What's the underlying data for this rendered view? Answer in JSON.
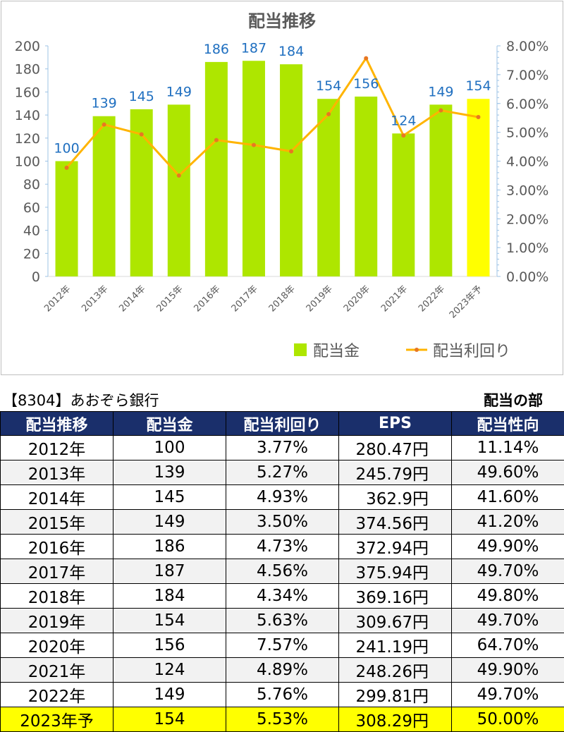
{
  "chart_data": {
    "type": "bar+line",
    "title": "配当推移",
    "categories": [
      "2012年",
      "2013年",
      "2014年",
      "2015年",
      "2016年",
      "2017年",
      "2018年",
      "2019年",
      "2020年",
      "2021年",
      "2022年",
      "2023年予"
    ],
    "series": [
      {
        "name": "配当金",
        "type": "bar",
        "axis": "left",
        "values": [
          100,
          139,
          145,
          149,
          186,
          187,
          184,
          154,
          156,
          124,
          149,
          154
        ],
        "color": "#aee600",
        "highlight_last_color": "#ffff00"
      },
      {
        "name": "配当利回り",
        "type": "line",
        "axis": "right",
        "values": [
          3.77,
          5.27,
          4.93,
          3.5,
          4.73,
          4.56,
          4.34,
          5.63,
          7.57,
          4.89,
          5.76,
          5.53
        ],
        "color": "#ffb400",
        "marker_color": "#e87722"
      }
    ],
    "left_axis": {
      "min": 0,
      "max": 200,
      "step": 20,
      "ticks": [
        "0",
        "20",
        "40",
        "60",
        "80",
        "100",
        "120",
        "140",
        "160",
        "180",
        "200"
      ]
    },
    "right_axis": {
      "min": 0,
      "max": 8,
      "step": 1,
      "ticks": [
        "0.00%",
        "1.00%",
        "2.00%",
        "3.00%",
        "4.00%",
        "5.00%",
        "6.00%",
        "7.00%",
        "8.00%"
      ]
    },
    "data_labels": [
      "100",
      "139",
      "145",
      "149",
      "186",
      "187",
      "184",
      "154",
      "156",
      "124",
      "149",
      "154"
    ],
    "legend": {
      "placement": "bottom-right",
      "items": [
        "配当金",
        "配当利回り"
      ]
    },
    "grid": false
  },
  "company_title": "【8304】あおぞら銀行",
  "section_label": "配当の部",
  "table": {
    "headers": [
      "配当推移",
      "配当金",
      "配当利回り",
      "EPS",
      "配当性向"
    ],
    "rows": [
      [
        "2012年",
        "100",
        "3.77%",
        "280.47円",
        "11.14%"
      ],
      [
        "2013年",
        "139",
        "5.27%",
        "245.79円",
        "49.60%"
      ],
      [
        "2014年",
        "145",
        "4.93%",
        "362.9円",
        "41.60%"
      ],
      [
        "2015年",
        "149",
        "3.50%",
        "374.56円",
        "41.20%"
      ],
      [
        "2016年",
        "186",
        "4.73%",
        "372.94円",
        "49.90%"
      ],
      [
        "2017年",
        "187",
        "4.56%",
        "375.94円",
        "49.70%"
      ],
      [
        "2018年",
        "184",
        "4.34%",
        "369.16円",
        "49.80%"
      ],
      [
        "2019年",
        "154",
        "5.63%",
        "309.67円",
        "49.70%"
      ],
      [
        "2020年",
        "156",
        "7.57%",
        "241.19円",
        "64.70%"
      ],
      [
        "2021年",
        "124",
        "4.89%",
        "248.26円",
        "49.90%"
      ],
      [
        "2022年",
        "149",
        "5.76%",
        "299.81円",
        "49.70%"
      ],
      [
        "2023年予",
        "154",
        "5.53%",
        "308.29円",
        "50.00%"
      ]
    ]
  },
  "colors": {
    "header_bg": "#1a2f6b",
    "row_alt": "#f2f2f2",
    "row_highlight": "#ffff00",
    "label_blue": "#1f6fc0"
  }
}
